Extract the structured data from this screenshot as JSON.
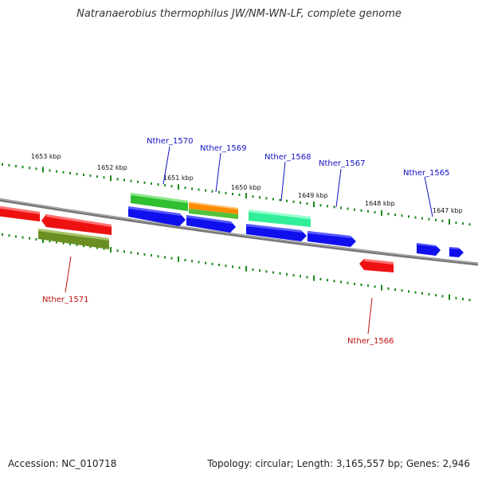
{
  "title": "Natranaerobius thermophilus JW/NM-WN-LF, complete genome",
  "footer": {
    "accession": "Accession: NC_010718",
    "summary": "Topology: circular; Length: 3,165,557 bp; Genes: 2,946"
  },
  "colors": {
    "backbone": "#808080",
    "tick": "#1a8a1a",
    "label_forward": "#1010c0",
    "label_reverse": "#c01010"
  },
  "scale_labels": [
    "1653 kbp",
    "1652 kbp",
    "1651 kbp",
    "1650 kbp",
    "1649 kbp",
    "1648 kbp",
    "1647 kbp"
  ],
  "gene_labels": [
    {
      "text": "Nther_1570",
      "strand": "forward"
    },
    {
      "text": "Nther_1569",
      "strand": "forward"
    },
    {
      "text": "Nther_1568",
      "strand": "forward"
    },
    {
      "text": "Nther_1567",
      "strand": "forward"
    },
    {
      "text": "Nther_1565",
      "strand": "forward"
    },
    {
      "text": "Nther_1571",
      "strand": "reverse"
    },
    {
      "text": "Nther_1566",
      "strand": "reverse"
    }
  ],
  "features": [
    {
      "name": "red-reverse-left-edge",
      "color": "#ee1111"
    },
    {
      "name": "red-reverse-gene-1",
      "color": "#ee1111"
    },
    {
      "name": "olive-reverse-gene-1571",
      "color": "#6b8e23"
    },
    {
      "name": "green-forward-gene-1570",
      "color": "#2fbf2f"
    },
    {
      "name": "blue-forward-cds-1570",
      "color": "#1010ee"
    },
    {
      "name": "orange-forward-gene-1569",
      "color": "#ff8c00"
    },
    {
      "name": "green-forward-gene-1569",
      "color": "#52c23a"
    },
    {
      "name": "blue-forward-cds-1569",
      "color": "#1010ee"
    },
    {
      "name": "teal-forward-gene-1568",
      "color": "#33ee99"
    },
    {
      "name": "blue-forward-cds-1568",
      "color": "#1010ee"
    },
    {
      "name": "blue-forward-cds-1567",
      "color": "#1010ee"
    },
    {
      "name": "red-reverse-gene-1566",
      "color": "#ee1111"
    },
    {
      "name": "blue-forward-cds-1565",
      "color": "#1010ee"
    },
    {
      "name": "blue-forward-cds-right",
      "color": "#1010ee"
    }
  ]
}
